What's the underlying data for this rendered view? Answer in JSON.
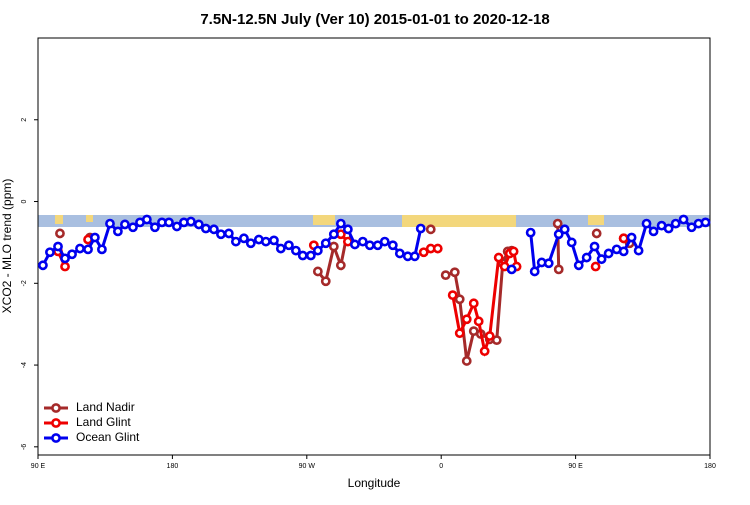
{
  "chart_data": {
    "type": "line",
    "title": "7.5N-12.5N July (Ver 10)   2015-01-01 to 2020-12-18",
    "x_label": "Longitude",
    "y_label": "XCO2 - MLO trend (ppm)",
    "xlim": [
      90,
      540
    ],
    "xticks": [
      {
        "value": 90,
        "label": "90 E"
      },
      180,
      {
        "value": 270,
        "label": "90 W"
      },
      {
        "value": 360,
        "label": "0"
      },
      {
        "value": 450,
        "label": "90 E"
      },
      {
        "value": 540,
        "label": "180"
      }
    ],
    "ylim": [
      -6.2,
      4.0
    ],
    "yticks": [
      -6,
      -4,
      -2,
      0,
      2
    ],
    "legend": "bottom-left",
    "series": [
      {
        "name": "Land Nadir",
        "color": "#a52a2a",
        "x": [
          104.7,
          null,
          124.8,
          null,
          277.4,
          282.7,
          288.1,
          292.8,
          296.8,
          null,
          353.0,
          null,
          363.0,
          369.1,
          372.4,
          377.1,
          381.8,
          386.5,
          392.5,
          397.2,
          401.2,
          404.5,
          407.2,
          null,
          438.0,
          438.7,
          null,
          464.1,
          null,
          482.2,
          486.2
        ],
        "values": [
          -0.78,
          null,
          -0.88,
          null,
          -1.71,
          -1.95,
          -1.1,
          -1.56,
          -0.83,
          null,
          -0.68,
          null,
          -1.8,
          -1.73,
          -2.39,
          -3.9,
          -3.17,
          -3.24,
          -3.37,
          -3.39,
          -1.51,
          -1.22,
          -1.2,
          null,
          -0.54,
          -1.66,
          null,
          -0.78,
          null,
          -0.9,
          -1.02
        ]
      },
      {
        "name": "Land Glint",
        "color": "#ee0000",
        "x": [
          103.4,
          108.1,
          null,
          123.5,
          null,
          274.7,
          null,
          292.8,
          297.5,
          null,
          348.3,
          353.0,
          357.7,
          null,
          367.7,
          372.4,
          377.1,
          381.8,
          385.1,
          389.1,
          392.5,
          398.5,
          402.5,
          405.9,
          408.5,
          410.5,
          null,
          463.4,
          null,
          482.2
        ],
        "values": [
          -1.22,
          -1.59,
          null,
          -0.93,
          null,
          -1.07,
          null,
          -0.8,
          -0.98,
          null,
          -1.24,
          -1.15,
          -1.15,
          null,
          -2.29,
          -3.22,
          -2.88,
          -2.49,
          -2.93,
          -3.66,
          -3.29,
          -1.37,
          -1.59,
          -1.27,
          -1.22,
          -1.59,
          null,
          -1.59,
          null,
          -0.9
        ]
      },
      {
        "name": "Ocean Glint",
        "color": "#0000ee",
        "x": [
          93.3,
          98.0,
          103.4,
          108.1,
          112.8,
          118.1,
          123.5,
          128.1,
          132.8,
          138.2,
          143.5,
          148.2,
          153.6,
          158.3,
          162.9,
          168.3,
          173.0,
          177.7,
          183.0,
          187.7,
          192.4,
          197.7,
          202.4,
          207.8,
          212.5,
          217.8,
          222.5,
          227.9,
          232.5,
          237.9,
          242.6,
          248.0,
          252.6,
          258.0,
          262.7,
          267.3,
          272.7,
          277.4,
          282.7,
          288.1,
          292.8,
          297.5,
          302.2,
          307.5,
          312.2,
          317.5,
          322.2,
          327.6,
          332.3,
          337.6,
          342.3,
          346.3,
          null,
          407.2,
          null,
          419.9,
          422.6,
          427.3,
          432.0,
          438.7,
          442.7,
          447.4,
          452.1,
          457.4,
          462.7,
          467.4,
          472.1,
          477.5,
          482.2,
          487.5,
          492.2,
          497.5,
          502.2,
          507.6,
          512.3,
          517.0,
          522.3,
          527.7,
          532.3,
          537.0
        ],
        "values": [
          -1.56,
          -1.24,
          -1.1,
          -1.39,
          -1.29,
          -1.15,
          -1.17,
          -0.88,
          -1.17,
          -0.54,
          -0.73,
          -0.56,
          -0.63,
          -0.51,
          -0.44,
          -0.63,
          -0.51,
          -0.51,
          -0.61,
          -0.51,
          -0.49,
          -0.56,
          -0.66,
          -0.68,
          -0.8,
          -0.78,
          -0.98,
          -0.9,
          -1.02,
          -0.93,
          -0.98,
          -0.95,
          -1.15,
          -1.07,
          -1.2,
          -1.32,
          -1.32,
          -1.2,
          -1.02,
          -0.8,
          -0.54,
          -0.68,
          -1.05,
          -0.98,
          -1.07,
          -1.07,
          -0.98,
          -1.07,
          -1.27,
          -1.34,
          -1.34,
          -0.66,
          null,
          -1.66,
          null,
          -0.76,
          -1.71,
          -1.49,
          -1.51,
          -0.8,
          -0.68,
          -1.0,
          -1.56,
          -1.37,
          -1.1,
          -1.41,
          -1.27,
          -1.17,
          -1.22,
          -0.88,
          -1.2,
          -0.54,
          -0.73,
          -0.59,
          -0.66,
          -0.54,
          -0.44,
          -0.63,
          -0.54,
          -0.51
        ]
      }
    ]
  }
}
